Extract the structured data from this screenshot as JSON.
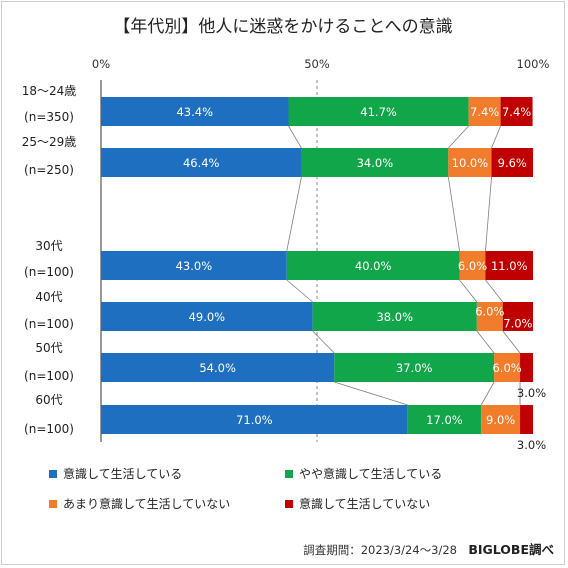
{
  "chart_data": {
    "type": "bar",
    "title": "【年代別】他人に迷惑をかけることへの意識",
    "xlim": [
      0,
      100
    ],
    "x_ticks": [
      "0%",
      "50%",
      "100%"
    ],
    "categories": [
      {
        "label": "18〜24歳",
        "n": "(n=350)"
      },
      {
        "label": "25〜29歳",
        "n": "(n=250)"
      },
      {
        "label": "30代",
        "n": "(n=100)"
      },
      {
        "label": "40代",
        "n": "(n=100)"
      },
      {
        "label": "50代",
        "n": "(n=100)"
      },
      {
        "label": "60代",
        "n": "(n=100)"
      }
    ],
    "series": [
      {
        "name": "意識して生活している",
        "color": "#1f6fc0",
        "values": [
          43.4,
          46.4,
          43.0,
          49.0,
          54.0,
          71.0
        ],
        "labels": [
          "43.4%",
          "46.4%",
          "43.0%",
          "49.0%",
          "54.0%",
          "71.0%"
        ]
      },
      {
        "name": "やや意識して生活している",
        "color": "#12a64a",
        "values": [
          41.7,
          34.0,
          40.0,
          38.0,
          37.0,
          17.0
        ],
        "labels": [
          "41.7%",
          "34.0%",
          "40.0%",
          "38.0%",
          "37.0%",
          "17.0%"
        ]
      },
      {
        "name": "あまり意識して生活していない",
        "color": "#f07c2c",
        "values": [
          7.4,
          10.0,
          6.0,
          6.0,
          6.0,
          9.0
        ],
        "labels": [
          "7.4%",
          "10.0%",
          "6.0%",
          "6.0%",
          "6.0%",
          "9.0%"
        ]
      },
      {
        "name": "意識して生活していない",
        "color": "#c00000",
        "values": [
          7.4,
          9.6,
          11.0,
          7.0,
          3.0,
          3.0
        ],
        "labels": [
          "7.4%",
          "9.6%",
          "11.0%",
          "7.0%",
          "3.0%",
          "3.0%"
        ]
      }
    ],
    "legend_position": "bottom",
    "connector_lines": true
  },
  "footer": {
    "period": "調査期間：2023/3/24〜3/28",
    "brand": "BIGLOBE調べ"
  }
}
